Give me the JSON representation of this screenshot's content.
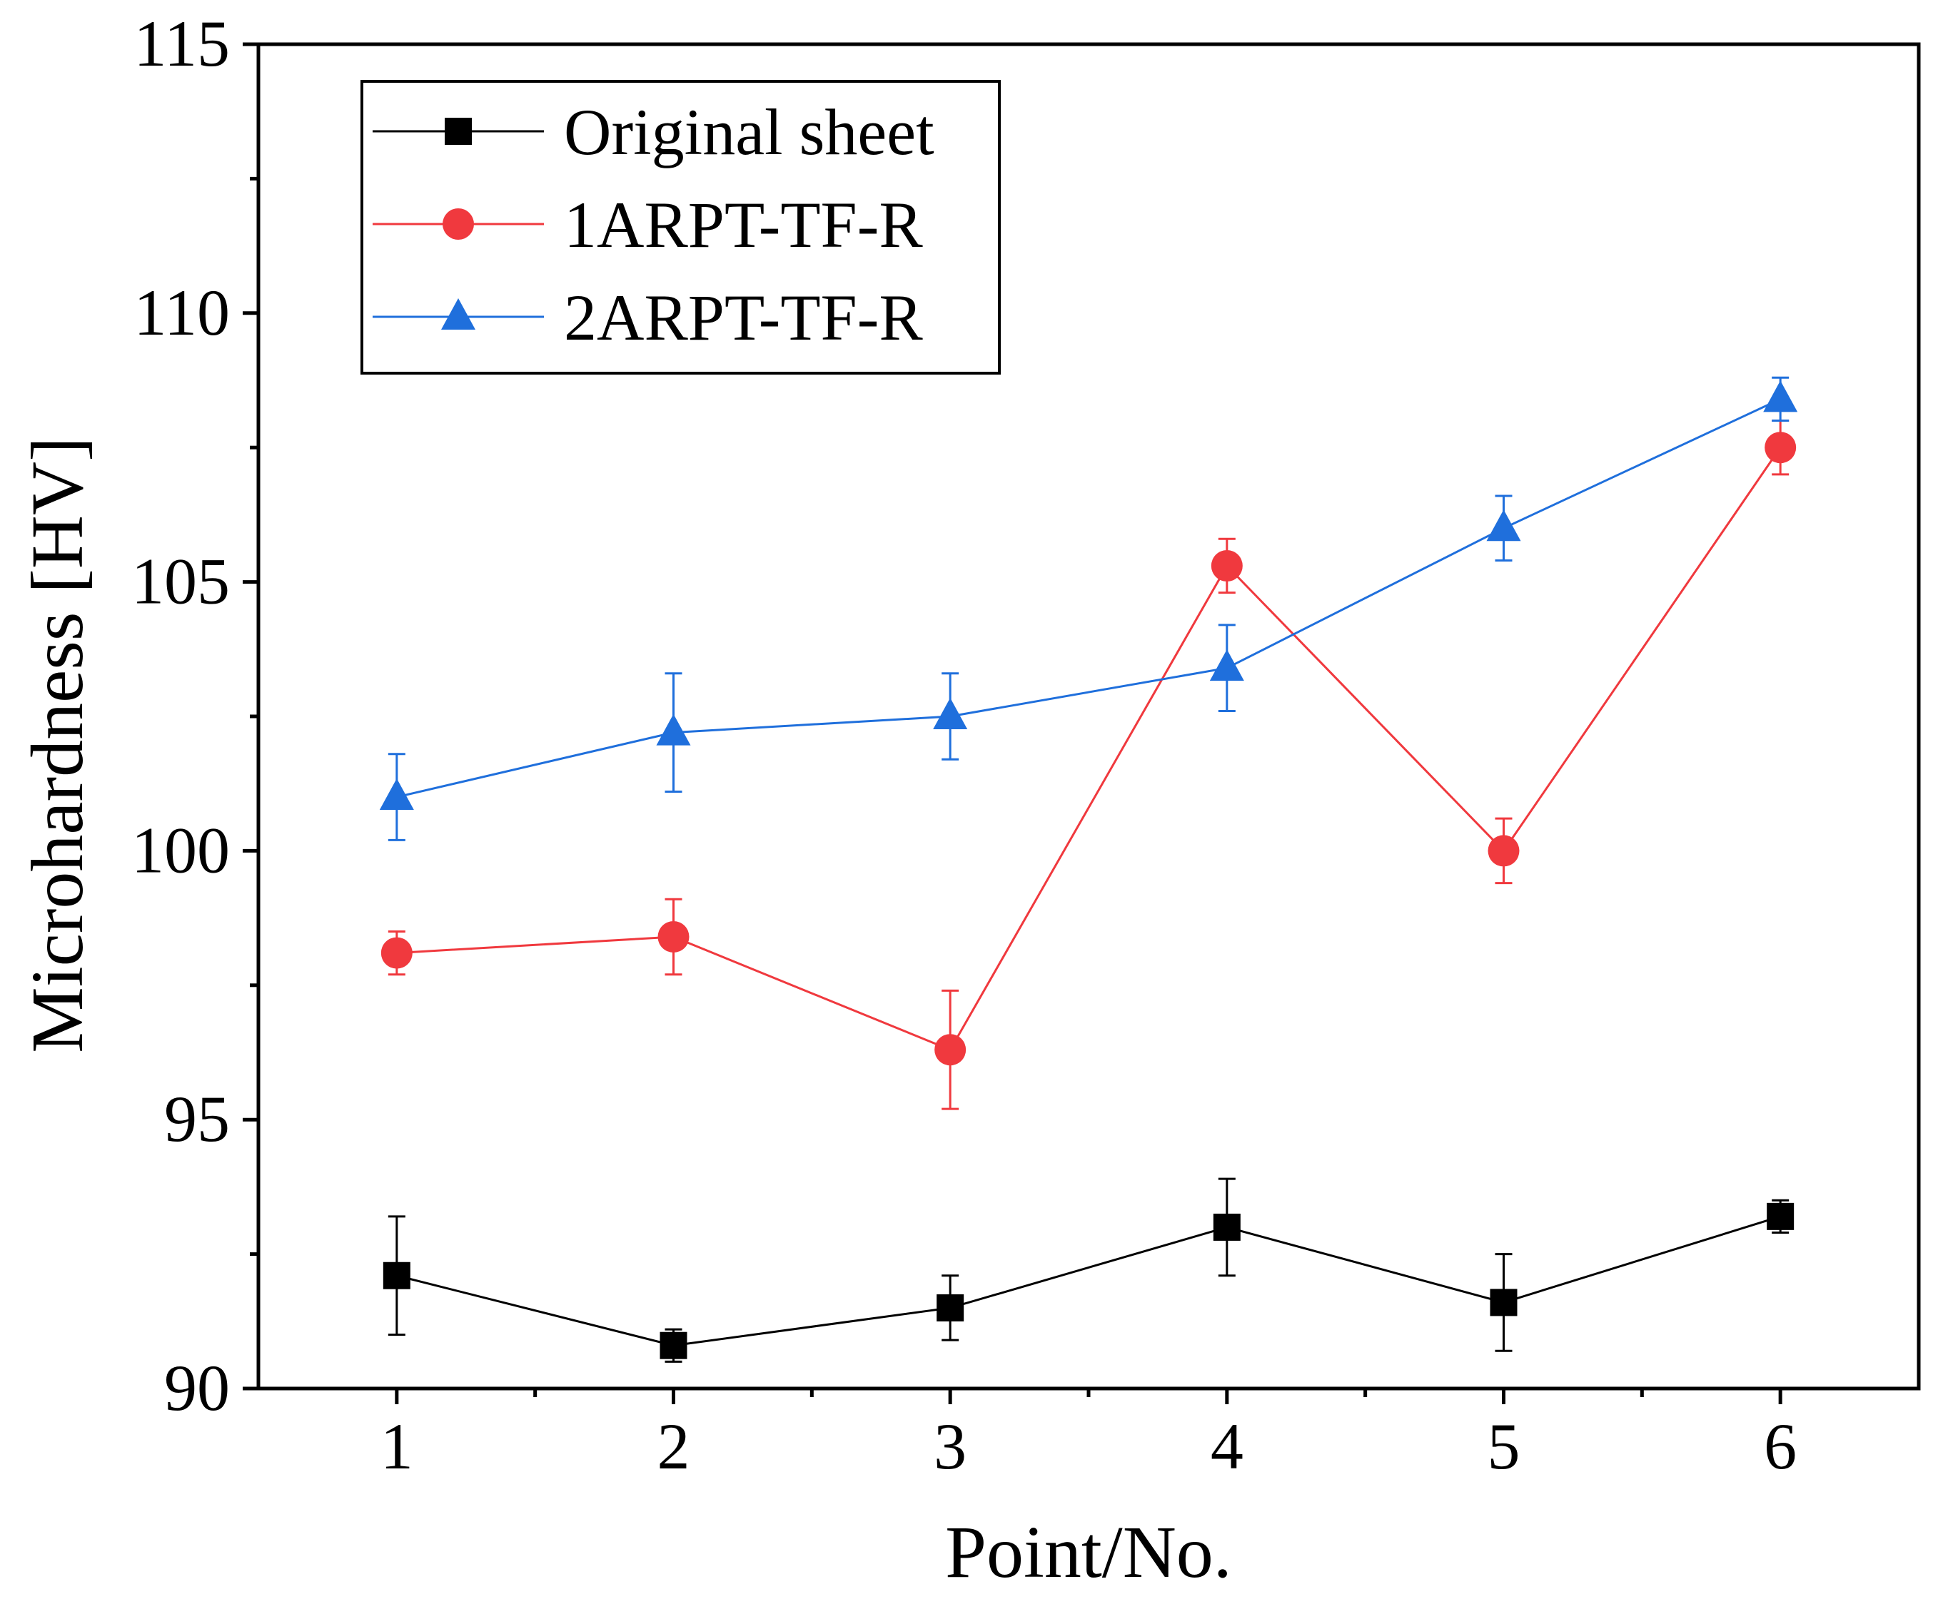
{
  "chart_data": {
    "type": "line",
    "title": "",
    "xlabel": "Point/No.",
    "ylabel": "Microhardness [HV]",
    "x": [
      1,
      2,
      3,
      4,
      5,
      6
    ],
    "xticks": [
      "1",
      "2",
      "3",
      "4",
      "5",
      "6"
    ],
    "xlim": [
      0.5,
      6.5
    ],
    "ylim": [
      90,
      115
    ],
    "yticks": [
      "90",
      "95",
      "100",
      "105",
      "110",
      "115"
    ],
    "ytick_values": [
      90,
      95,
      100,
      105,
      110,
      115
    ],
    "grid": false,
    "legend_position": "top-left",
    "series": [
      {
        "name": "Original sheet",
        "color": "#000000",
        "marker": "square",
        "values": [
          92.1,
          90.8,
          91.5,
          93.0,
          91.6,
          93.2
        ],
        "errors": [
          1.1,
          0.3,
          0.6,
          0.9,
          0.9,
          0.3
        ]
      },
      {
        "name": "1ARPT-TF-R",
        "color": "#f0393e",
        "marker": "circle",
        "values": [
          98.1,
          98.4,
          96.3,
          105.3,
          100.0,
          107.5
        ],
        "errors": [
          0.4,
          0.7,
          1.1,
          0.5,
          0.6,
          0.5
        ]
      },
      {
        "name": "2ARPT-TF-R",
        "color": "#1f6fdc",
        "marker": "triangle",
        "values": [
          101.0,
          102.2,
          102.5,
          103.4,
          106.0,
          108.4
        ],
        "errors": [
          0.8,
          1.1,
          0.8,
          0.8,
          0.6,
          0.4
        ]
      }
    ]
  }
}
